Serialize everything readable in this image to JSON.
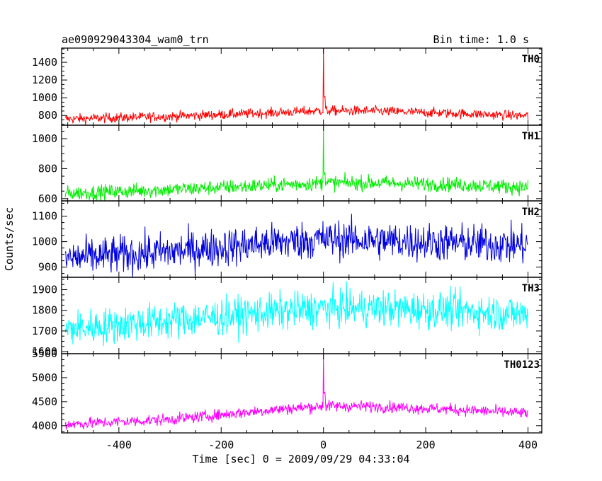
{
  "chart_data": {
    "type": "line",
    "title_left": "ae090929043304_wam0_trn",
    "title_right": "Bin time: 1.0 s",
    "xlabel": "Time [sec] 0 = 2009/09/29 04:33:04",
    "ylabel": "Counts/sec",
    "xlim": [
      -512,
      427
    ],
    "x_ticks": [
      -400,
      -200,
      0,
      200,
      400
    ],
    "bin_time": 1.0,
    "grid": false,
    "panels": [
      {
        "name": "TH0",
        "color": "#ff0000",
        "ylim": [
          690,
          1560
        ],
        "y_ticks": [
          800,
          1000,
          1200,
          1400
        ],
        "baseline": [
          [
            -500,
            760
          ],
          [
            -300,
            790
          ],
          [
            -100,
            830
          ],
          [
            0,
            855
          ],
          [
            100,
            850
          ],
          [
            250,
            825
          ],
          [
            400,
            795
          ]
        ],
        "noise": 28,
        "burst": {
          "t": 0,
          "peak": 1560,
          "tail": 1000
        }
      },
      {
        "name": "TH1",
        "color": "#00ee00",
        "ylim": [
          585,
          1090
        ],
        "y_ticks": [
          600,
          800,
          1000
        ],
        "baseline": [
          [
            -500,
            635
          ],
          [
            -300,
            660
          ],
          [
            -100,
            690
          ],
          [
            0,
            705
          ],
          [
            100,
            705
          ],
          [
            250,
            695
          ],
          [
            400,
            675
          ]
        ],
        "noise": 25,
        "burst": {
          "t": 0,
          "peak": 1090,
          "tail": 780
        }
      },
      {
        "name": "TH2",
        "color": "#0000dd",
        "ylim": [
          860,
          1160
        ],
        "y_ticks": [
          900,
          1000,
          1100
        ],
        "baseline": [
          [
            -500,
            935
          ],
          [
            -300,
            960
          ],
          [
            -100,
            995
          ],
          [
            0,
            1010
          ],
          [
            100,
            1005
          ],
          [
            250,
            995
          ],
          [
            400,
            985
          ]
        ],
        "noise": 38,
        "burst": null
      },
      {
        "name": "TH3",
        "color": "#00ffff",
        "ylim": [
          1590,
          1960
        ],
        "y_ticks": [
          1600,
          1700,
          1800,
          1900
        ],
        "baseline": [
          [
            -500,
            1710
          ],
          [
            -300,
            1750
          ],
          [
            -100,
            1790
          ],
          [
            0,
            1810
          ],
          [
            100,
            1810
          ],
          [
            250,
            1800
          ],
          [
            400,
            1780
          ]
        ],
        "noise": 45,
        "burst": null
      },
      {
        "name": "TH0123",
        "color": "#ff00ff",
        "ylim": [
          3850,
          5500
        ],
        "y_ticks": [
          4000,
          4500,
          5000,
          5500
        ],
        "baseline": [
          [
            -500,
            4030
          ],
          [
            -300,
            4130
          ],
          [
            -100,
            4330
          ],
          [
            0,
            4410
          ],
          [
            100,
            4400
          ],
          [
            250,
            4340
          ],
          [
            400,
            4260
          ]
        ],
        "noise": 60,
        "burst": {
          "t": 0,
          "peak": 5500,
          "tail": 4700
        }
      }
    ]
  }
}
